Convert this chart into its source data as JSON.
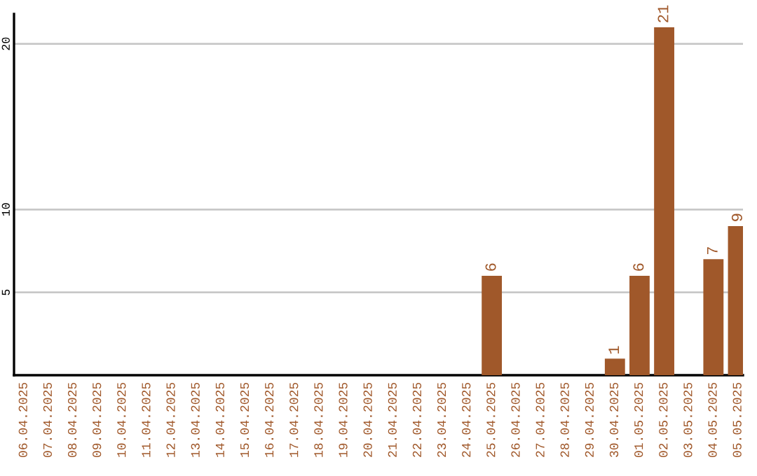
{
  "chart_data": {
    "type": "bar",
    "categories": [
      "06.04.2025",
      "07.04.2025",
      "08.04.2025",
      "09.04.2025",
      "10.04.2025",
      "11.04.2025",
      "12.04.2025",
      "13.04.2025",
      "14.04.2025",
      "15.04.2025",
      "16.04.2025",
      "17.04.2025",
      "18.04.2025",
      "19.04.2025",
      "20.04.2025",
      "21.04.2025",
      "22.04.2025",
      "23.04.2025",
      "24.04.2025",
      "25.04.2025",
      "26.04.2025",
      "27.04.2025",
      "28.04.2025",
      "29.04.2025",
      "30.04.2025",
      "01.05.2025",
      "02.05.2025",
      "03.05.2025",
      "04.05.2025",
      "05.05.2025"
    ],
    "values": [
      0,
      0,
      0,
      0,
      0,
      0,
      0,
      0,
      0,
      0,
      0,
      0,
      0,
      0,
      0,
      0,
      0,
      0,
      0,
      6,
      0,
      0,
      0,
      0,
      1,
      6,
      21,
      0,
      7,
      9
    ],
    "value_labels": [
      null,
      null,
      null,
      null,
      null,
      null,
      null,
      null,
      null,
      null,
      null,
      null,
      null,
      null,
      null,
      null,
      null,
      null,
      null,
      "6",
      null,
      null,
      null,
      null,
      "1",
      "6",
      "21",
      null,
      "7",
      "9"
    ],
    "color": "#a0582a",
    "ylim": [
      0,
      21.8
    ],
    "yticks": [
      5,
      10,
      20
    ],
    "grid": "y"
  }
}
